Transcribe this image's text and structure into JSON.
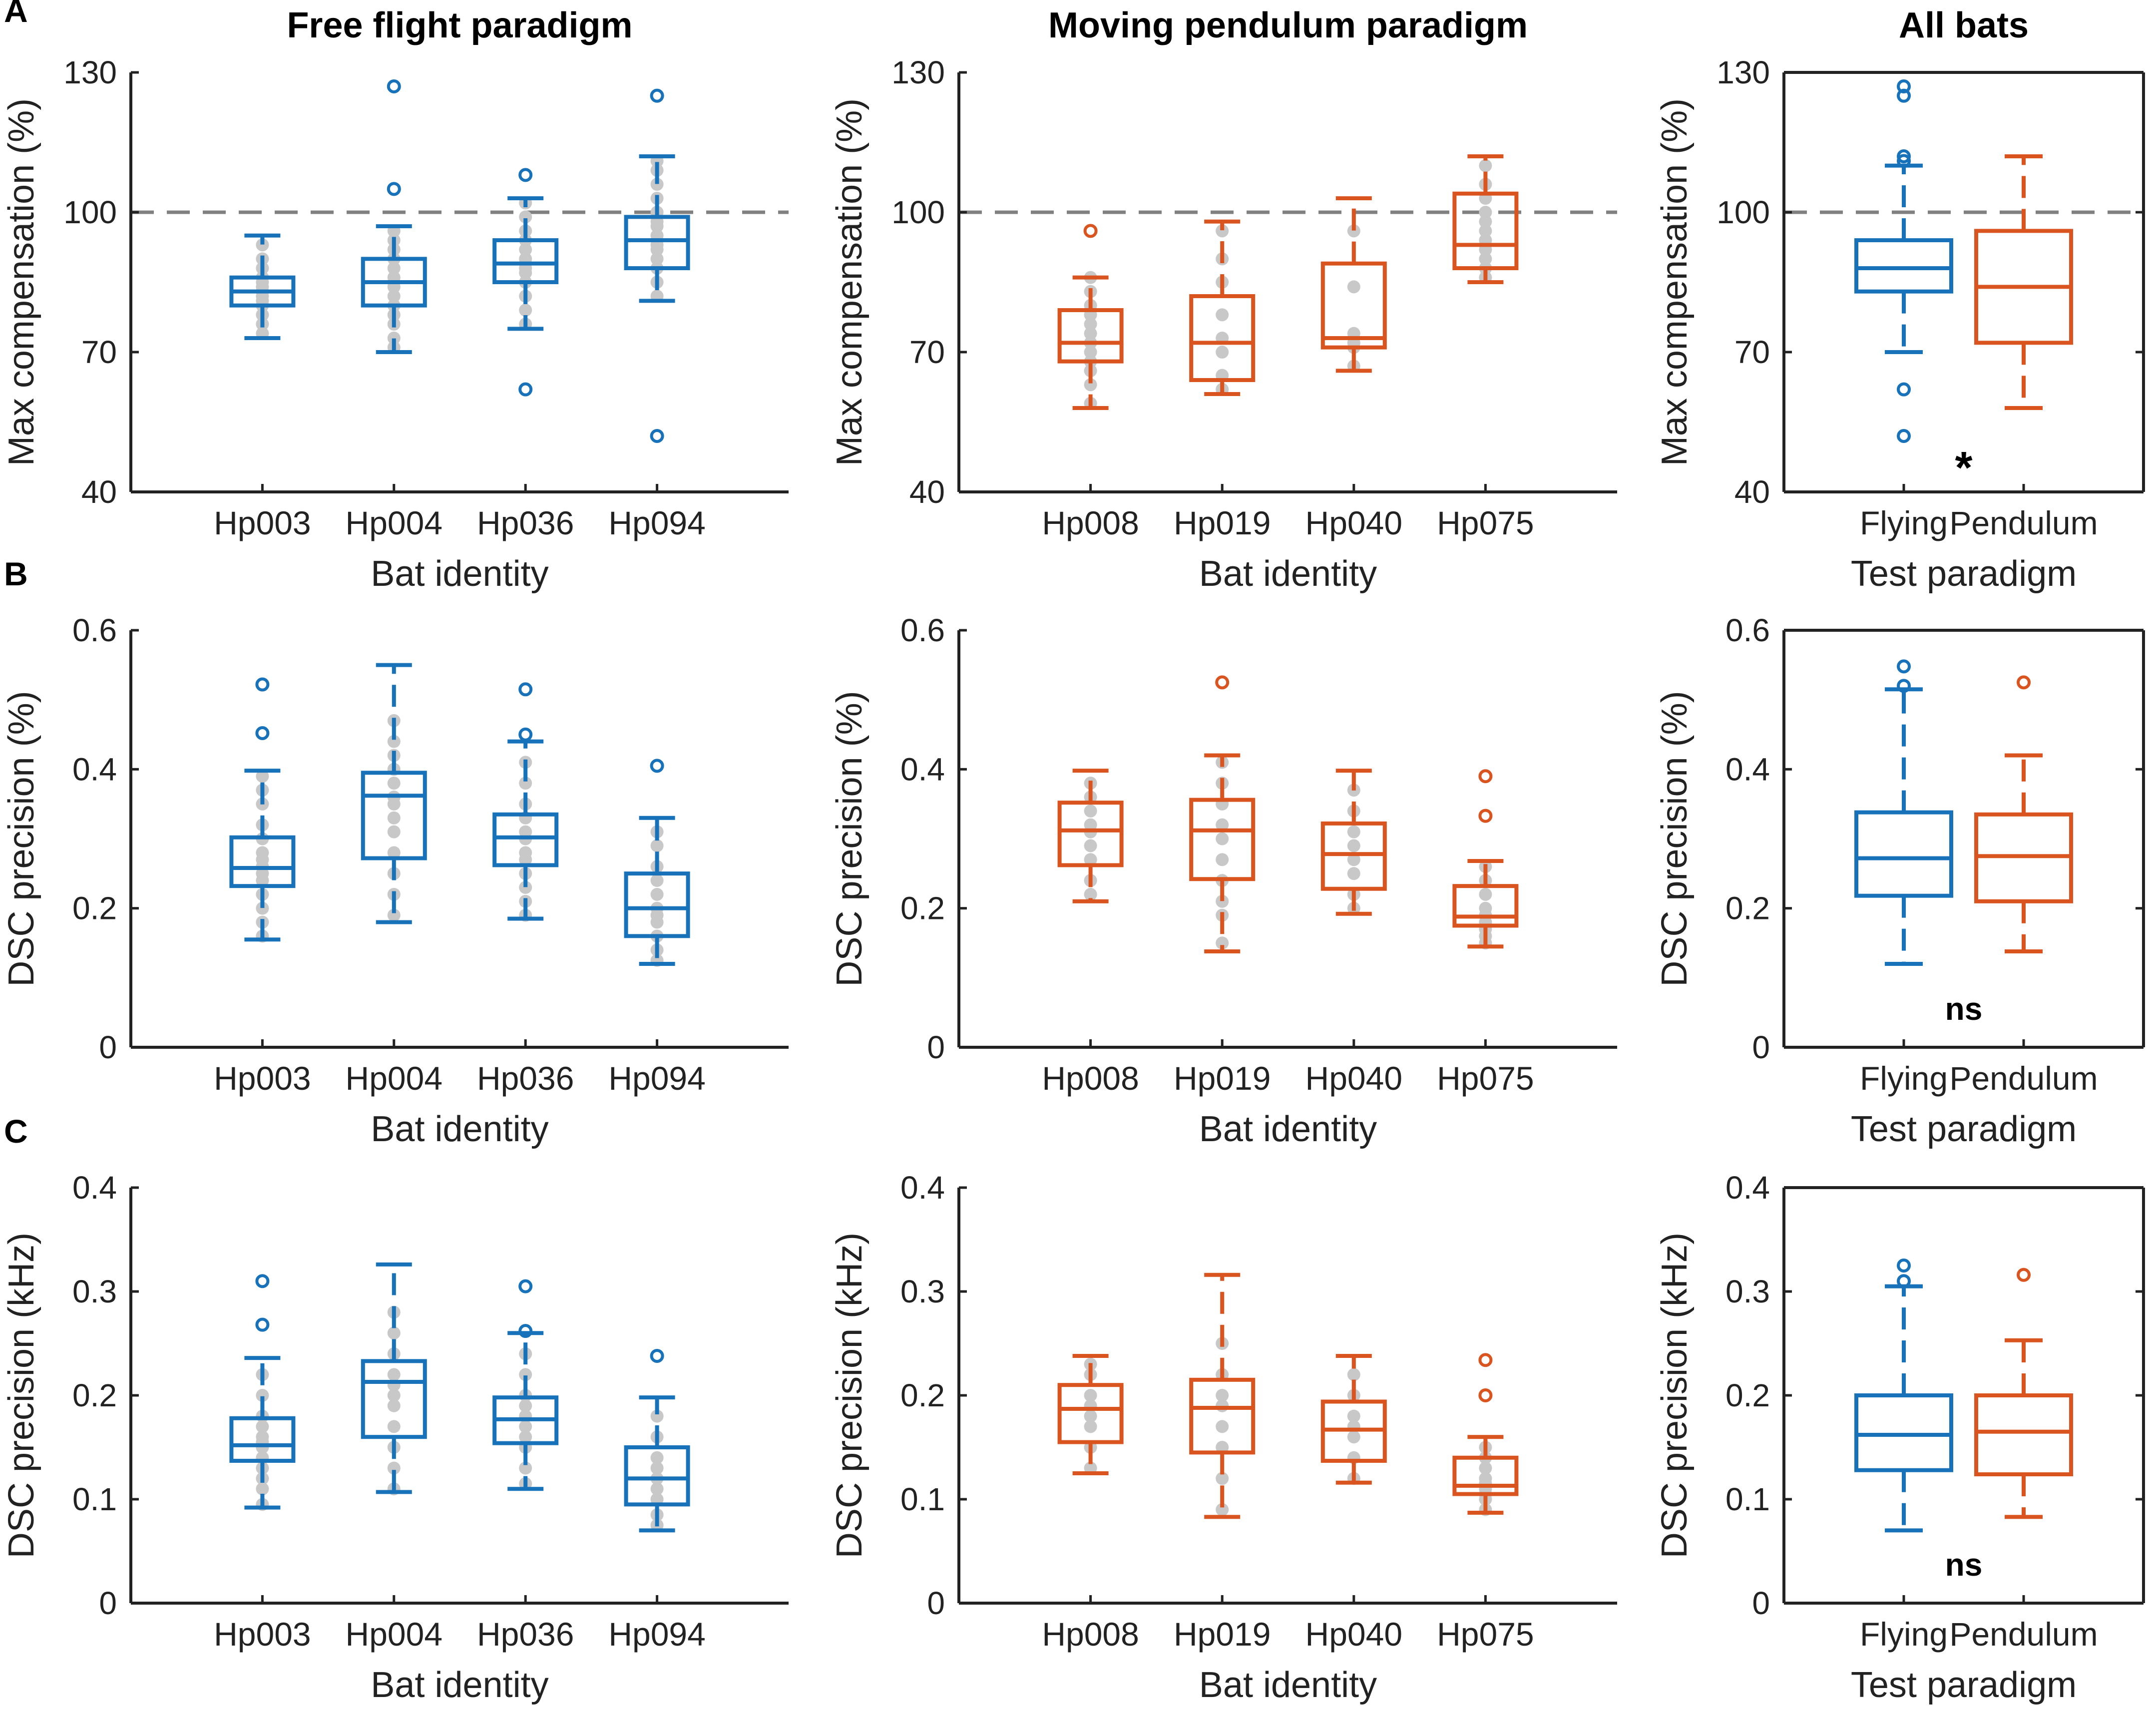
{
  "colors": {
    "flying": "#1772BA",
    "pendulum": "#D9541E",
    "points": "#C8C8C8",
    "reference": "#808080",
    "axis": "#222222"
  },
  "column_titles": [
    "Free flight paradigm",
    "Moving pendulum paradigm",
    "All bats"
  ],
  "row_labels": [
    "A",
    "B",
    "C"
  ],
  "chart_data": [
    {
      "id": "A1",
      "row": 0,
      "col": 0,
      "type": "box",
      "title": "Free flight paradigm",
      "xlabel": "Bat identity",
      "ylabel": "Max compensation (%)",
      "ylim": [
        40,
        130
      ],
      "yticks": [
        40,
        70,
        100,
        130
      ],
      "grid": false,
      "box": false,
      "reference_line": 100,
      "color": "flying",
      "annotation": "",
      "categories": [
        "Hp003",
        "Hp004",
        "Hp036",
        "Hp094"
      ],
      "boxes": [
        {
          "min": 73,
          "q1": 80,
          "median": 83,
          "q3": 86,
          "max": 95,
          "outliers": [],
          "points": [
            74,
            76,
            78,
            80,
            81,
            82,
            83,
            84,
            85,
            86,
            88,
            90,
            93
          ]
        },
        {
          "min": 70,
          "q1": 80,
          "median": 85,
          "q3": 90,
          "max": 97,
          "outliers": [
            105,
            127
          ],
          "points": [
            71,
            73,
            76,
            78,
            80,
            82,
            84,
            85,
            86,
            88,
            90,
            92,
            94,
            96
          ]
        },
        {
          "min": 75,
          "q1": 85,
          "median": 89,
          "q3": 94,
          "max": 103,
          "outliers": [
            62,
            108
          ],
          "points": [
            76,
            79,
            82,
            85,
            87,
            88,
            89,
            90,
            92,
            94,
            96,
            99,
            102
          ]
        },
        {
          "min": 81,
          "q1": 88,
          "median": 94,
          "q3": 99,
          "max": 112,
          "outliers": [
            52,
            125
          ],
          "points": [
            82,
            85,
            88,
            90,
            92,
            93,
            94,
            95,
            97,
            98,
            100,
            103,
            106,
            109,
            111
          ]
        }
      ]
    },
    {
      "id": "A2",
      "row": 0,
      "col": 1,
      "type": "box",
      "title": "Moving pendulum paradigm",
      "xlabel": "Bat identity",
      "ylabel": "Max compensation (%)",
      "ylim": [
        40,
        130
      ],
      "yticks": [
        40,
        70,
        100,
        130
      ],
      "grid": false,
      "box": false,
      "reference_line": 100,
      "color": "pendulum",
      "annotation": "",
      "categories": [
        "Hp008",
        "Hp019",
        "Hp040",
        "Hp075"
      ],
      "boxes": [
        {
          "min": 58,
          "q1": 68,
          "median": 72,
          "q3": 79,
          "max": 86,
          "outliers": [
            96
          ],
          "points": [
            59,
            63,
            66,
            68,
            70,
            72,
            74,
            76,
            78,
            80,
            83,
            86
          ]
        },
        {
          "min": 61,
          "q1": 64,
          "median": 72,
          "q3": 82,
          "max": 98,
          "outliers": [],
          "points": [
            62,
            65,
            70,
            73,
            78,
            85,
            90,
            96
          ]
        },
        {
          "min": 66,
          "q1": 71,
          "median": 73,
          "q3": 89,
          "max": 103,
          "outliers": [],
          "points": [
            67,
            71,
            72,
            74,
            84,
            96
          ]
        },
        {
          "min": 85,
          "q1": 88,
          "median": 93,
          "q3": 104,
          "max": 112,
          "outliers": [],
          "points": [
            86,
            88,
            90,
            92,
            94,
            96,
            98,
            100,
            103,
            106,
            110
          ]
        }
      ]
    },
    {
      "id": "A3",
      "row": 0,
      "col": 2,
      "type": "box",
      "title": "All bats",
      "xlabel": "Test paradigm",
      "ylabel": "Max compensation (%)",
      "ylim": [
        40,
        130
      ],
      "yticks": [
        40,
        70,
        100,
        130
      ],
      "grid": false,
      "box": true,
      "reference_line": 100,
      "annotation": "*",
      "categories": [
        "Flying",
        "Pendulum"
      ],
      "boxes": [
        {
          "color": "flying",
          "min": 70,
          "q1": 83,
          "median": 88,
          "q3": 94,
          "max": 110,
          "outliers": [
            52,
            62,
            111,
            112,
            125,
            127
          ],
          "points": []
        },
        {
          "color": "pendulum",
          "min": 58,
          "q1": 72,
          "median": 84,
          "q3": 96,
          "max": 112,
          "outliers": [],
          "points": []
        }
      ]
    },
    {
      "id": "B1",
      "row": 1,
      "col": 0,
      "type": "box",
      "title": "",
      "xlabel": "Bat identity",
      "ylabel": "DSC precision (%)",
      "ylim": [
        0,
        0.6
      ],
      "yticks": [
        0,
        0.2,
        0.4,
        0.6
      ],
      "grid": false,
      "box": false,
      "reference_line": null,
      "color": "flying",
      "annotation": "",
      "categories": [
        "Hp003",
        "Hp004",
        "Hp036",
        "Hp094"
      ],
      "boxes": [
        {
          "min": 0.155,
          "q1": 0.232,
          "median": 0.258,
          "q3": 0.302,
          "max": 0.398,
          "outliers": [
            0.452,
            0.522
          ],
          "points": [
            0.16,
            0.18,
            0.2,
            0.22,
            0.24,
            0.25,
            0.26,
            0.27,
            0.28,
            0.3,
            0.32,
            0.35,
            0.37,
            0.39
          ]
        },
        {
          "min": 0.18,
          "q1": 0.272,
          "median": 0.362,
          "q3": 0.395,
          "max": 0.55,
          "outliers": [],
          "points": [
            0.19,
            0.22,
            0.25,
            0.28,
            0.31,
            0.33,
            0.35,
            0.36,
            0.38,
            0.4,
            0.42,
            0.44,
            0.47
          ]
        },
        {
          "min": 0.185,
          "q1": 0.262,
          "median": 0.302,
          "q3": 0.335,
          "max": 0.44,
          "outliers": [
            0.45,
            0.515
          ],
          "points": [
            0.19,
            0.21,
            0.23,
            0.25,
            0.27,
            0.28,
            0.3,
            0.31,
            0.33,
            0.35,
            0.38,
            0.41
          ]
        },
        {
          "min": 0.12,
          "q1": 0.16,
          "median": 0.2,
          "q3": 0.25,
          "max": 0.33,
          "outliers": [
            0.405
          ],
          "points": [
            0.125,
            0.14,
            0.16,
            0.18,
            0.19,
            0.2,
            0.22,
            0.24,
            0.26,
            0.29,
            0.31
          ]
        }
      ]
    },
    {
      "id": "B2",
      "row": 1,
      "col": 1,
      "type": "box",
      "title": "",
      "xlabel": "Bat identity",
      "ylabel": "DSC precision (%)",
      "ylim": [
        0,
        0.6
      ],
      "yticks": [
        0,
        0.2,
        0.4,
        0.6
      ],
      "grid": false,
      "box": false,
      "reference_line": null,
      "color": "pendulum",
      "annotation": "",
      "categories": [
        "Hp008",
        "Hp019",
        "Hp040",
        "Hp075"
      ],
      "boxes": [
        {
          "min": 0.21,
          "q1": 0.262,
          "median": 0.312,
          "q3": 0.352,
          "max": 0.398,
          "outliers": [],
          "points": [
            0.22,
            0.24,
            0.27,
            0.29,
            0.31,
            0.32,
            0.34,
            0.36,
            0.38
          ]
        },
        {
          "min": 0.138,
          "q1": 0.242,
          "median": 0.312,
          "q3": 0.356,
          "max": 0.42,
          "outliers": [
            0.525
          ],
          "points": [
            0.15,
            0.19,
            0.21,
            0.24,
            0.27,
            0.3,
            0.32,
            0.35,
            0.38,
            0.41
          ]
        },
        {
          "min": 0.192,
          "q1": 0.228,
          "median": 0.278,
          "q3": 0.322,
          "max": 0.398,
          "outliers": [],
          "points": [
            0.2,
            0.22,
            0.25,
            0.27,
            0.29,
            0.31,
            0.34,
            0.37
          ]
        },
        {
          "min": 0.145,
          "q1": 0.175,
          "median": 0.188,
          "q3": 0.232,
          "max": 0.268,
          "outliers": [
            0.333,
            0.39
          ],
          "points": [
            0.15,
            0.16,
            0.17,
            0.18,
            0.19,
            0.2,
            0.22,
            0.24,
            0.26
          ]
        }
      ]
    },
    {
      "id": "B3",
      "row": 1,
      "col": 2,
      "type": "box",
      "title": "",
      "xlabel": "Test paradigm",
      "ylabel": "DSC precision (%)",
      "ylim": [
        0,
        0.6
      ],
      "yticks": [
        0,
        0.2,
        0.4,
        0.6
      ],
      "grid": false,
      "box": true,
      "reference_line": null,
      "annotation": "ns",
      "categories": [
        "Flying",
        "Pendulum"
      ],
      "boxes": [
        {
          "color": "flying",
          "min": 0.12,
          "q1": 0.218,
          "median": 0.272,
          "q3": 0.338,
          "max": 0.515,
          "outliers": [
            0.52,
            0.548
          ],
          "points": []
        },
        {
          "color": "pendulum",
          "min": 0.138,
          "q1": 0.21,
          "median": 0.275,
          "q3": 0.335,
          "max": 0.42,
          "outliers": [
            0.525
          ],
          "points": []
        }
      ]
    },
    {
      "id": "C1",
      "row": 2,
      "col": 0,
      "type": "box",
      "title": "",
      "xlabel": "Bat identity",
      "ylabel": "DSC precision (kHz)",
      "ylim": [
        0,
        0.4
      ],
      "yticks": [
        0,
        0.1,
        0.2,
        0.3,
        0.4
      ],
      "grid": false,
      "box": false,
      "reference_line": null,
      "color": "flying",
      "annotation": "",
      "categories": [
        "Hp003",
        "Hp004",
        "Hp036",
        "Hp094"
      ],
      "boxes": [
        {
          "min": 0.092,
          "q1": 0.137,
          "median": 0.152,
          "q3": 0.178,
          "max": 0.236,
          "outliers": [
            0.268,
            0.31
          ],
          "points": [
            0.095,
            0.11,
            0.12,
            0.13,
            0.14,
            0.15,
            0.155,
            0.16,
            0.17,
            0.18,
            0.2,
            0.22
          ]
        },
        {
          "min": 0.107,
          "q1": 0.16,
          "median": 0.213,
          "q3": 0.233,
          "max": 0.326,
          "outliers": [],
          "points": [
            0.11,
            0.13,
            0.15,
            0.17,
            0.19,
            0.2,
            0.21,
            0.22,
            0.24,
            0.26,
            0.28
          ]
        },
        {
          "min": 0.11,
          "q1": 0.154,
          "median": 0.177,
          "q3": 0.198,
          "max": 0.26,
          "outliers": [
            0.262,
            0.305
          ],
          "points": [
            0.115,
            0.13,
            0.15,
            0.16,
            0.17,
            0.18,
            0.19,
            0.2,
            0.22,
            0.24
          ]
        },
        {
          "min": 0.07,
          "q1": 0.095,
          "median": 0.12,
          "q3": 0.15,
          "max": 0.198,
          "outliers": [
            0.238
          ],
          "points": [
            0.075,
            0.085,
            0.1,
            0.11,
            0.12,
            0.13,
            0.14,
            0.16,
            0.18
          ]
        }
      ]
    },
    {
      "id": "C2",
      "row": 2,
      "col": 1,
      "type": "box",
      "title": "",
      "xlabel": "Bat identity",
      "ylabel": "DSC precision (kHz)",
      "ylim": [
        0,
        0.4
      ],
      "yticks": [
        0,
        0.1,
        0.2,
        0.3,
        0.4
      ],
      "grid": false,
      "box": false,
      "reference_line": null,
      "color": "pendulum",
      "annotation": "",
      "categories": [
        "Hp008",
        "Hp019",
        "Hp040",
        "Hp075"
      ],
      "boxes": [
        {
          "min": 0.125,
          "q1": 0.155,
          "median": 0.187,
          "q3": 0.21,
          "max": 0.238,
          "outliers": [],
          "points": [
            0.13,
            0.15,
            0.17,
            0.18,
            0.19,
            0.2,
            0.22,
            0.23
          ]
        },
        {
          "min": 0.083,
          "q1": 0.145,
          "median": 0.188,
          "q3": 0.215,
          "max": 0.316,
          "outliers": [],
          "points": [
            0.09,
            0.12,
            0.15,
            0.17,
            0.19,
            0.2,
            0.22,
            0.25
          ]
        },
        {
          "min": 0.116,
          "q1": 0.137,
          "median": 0.167,
          "q3": 0.194,
          "max": 0.238,
          "outliers": [],
          "points": [
            0.12,
            0.14,
            0.16,
            0.17,
            0.18,
            0.2,
            0.22
          ]
        },
        {
          "min": 0.087,
          "q1": 0.105,
          "median": 0.113,
          "q3": 0.14,
          "max": 0.16,
          "outliers": [
            0.2,
            0.234
          ],
          "points": [
            0.09,
            0.1,
            0.105,
            0.11,
            0.115,
            0.12,
            0.13,
            0.14,
            0.15
          ]
        }
      ]
    },
    {
      "id": "C3",
      "row": 2,
      "col": 2,
      "type": "box",
      "title": "",
      "xlabel": "Test paradigm",
      "ylabel": "DSC precision (kHz)",
      "ylim": [
        0,
        0.4
      ],
      "yticks": [
        0,
        0.1,
        0.2,
        0.3,
        0.4
      ],
      "grid": false,
      "box": true,
      "reference_line": null,
      "annotation": "ns",
      "categories": [
        "Flying",
        "Pendulum"
      ],
      "boxes": [
        {
          "color": "flying",
          "min": 0.07,
          "q1": 0.128,
          "median": 0.162,
          "q3": 0.2,
          "max": 0.305,
          "outliers": [
            0.31,
            0.325
          ],
          "points": []
        },
        {
          "color": "pendulum",
          "min": 0.083,
          "q1": 0.124,
          "median": 0.165,
          "q3": 0.2,
          "max": 0.253,
          "outliers": [
            0.316
          ],
          "points": []
        }
      ]
    }
  ]
}
